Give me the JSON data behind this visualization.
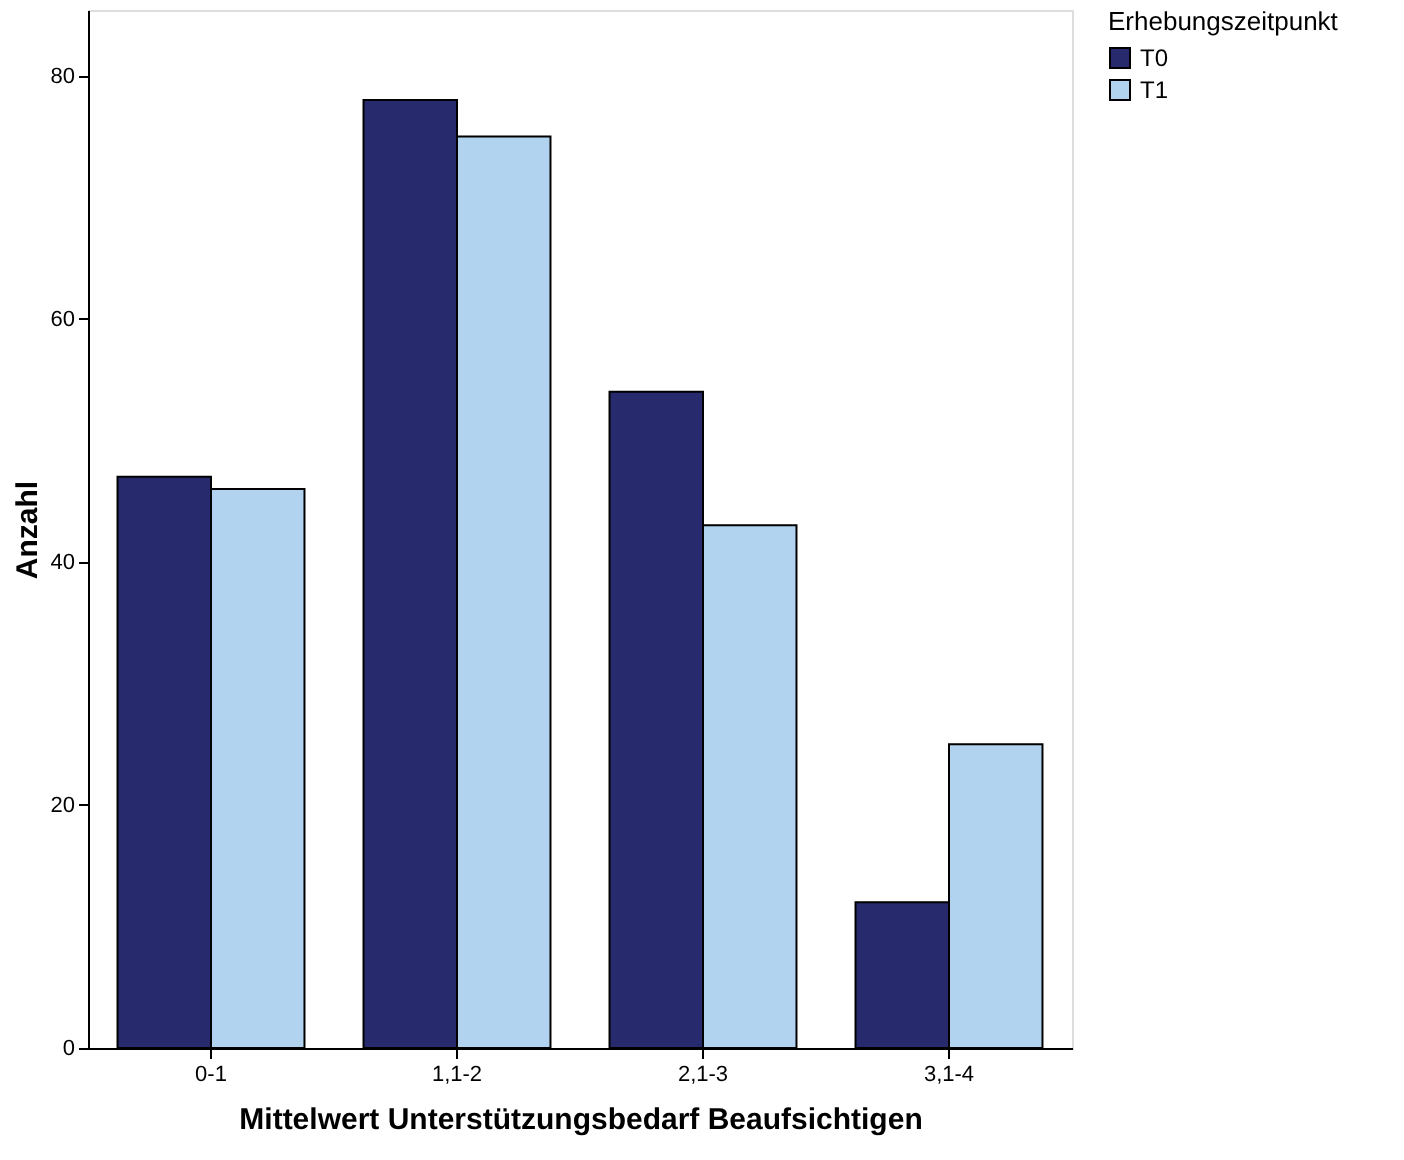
{
  "chart_data": {
    "type": "bar",
    "xlabel": "Mittelwert Unterstützungsbedarf Beaufsichtigen",
    "ylabel": "Anzahl",
    "legend_title": "Erhebungszeitpunkt",
    "categories": [
      "0-1",
      "1,1-2",
      "2,1-3",
      "3,1-4"
    ],
    "series": [
      {
        "name": "T0",
        "color": "#272a6d",
        "values": [
          47,
          78,
          54,
          12
        ]
      },
      {
        "name": "T1",
        "color": "#b1d3ef",
        "values": [
          46,
          75,
          43,
          25
        ]
      }
    ],
    "ylim": [
      0,
      85.4
    ],
    "yticks": [
      0,
      20,
      40,
      60,
      80
    ],
    "grid": false,
    "legend": "top right"
  }
}
